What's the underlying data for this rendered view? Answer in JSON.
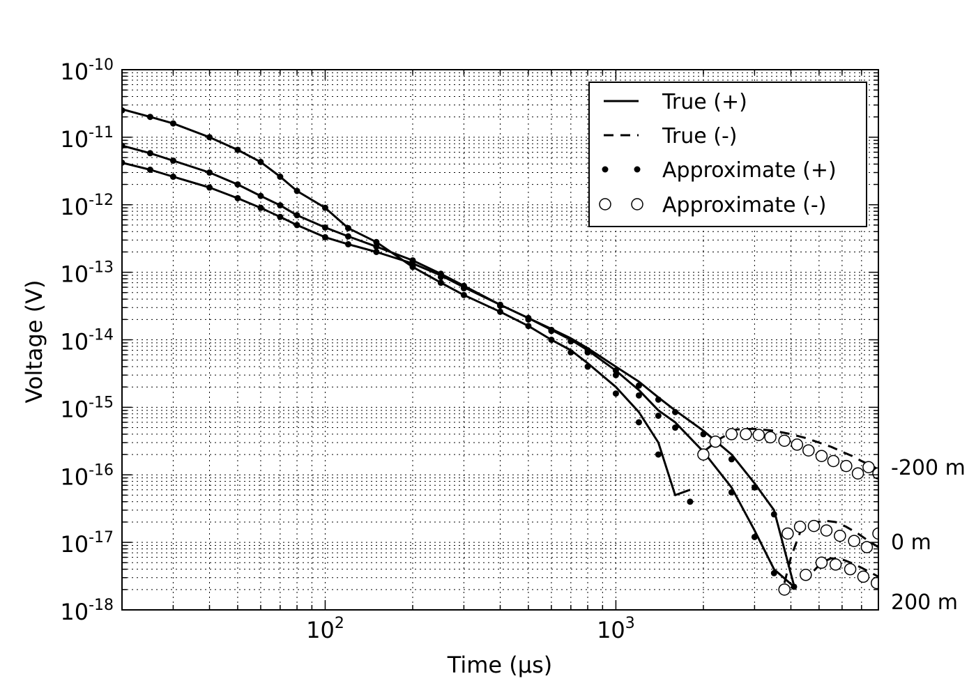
{
  "chart_data": {
    "type": "line",
    "xlabel": "Time (μs)",
    "ylabel": "Voltage (V)",
    "x_scale": "log",
    "y_scale": "log",
    "xlim": [
      20,
      8000
    ],
    "ylim": [
      1e-18,
      1e-10
    ],
    "grid": true,
    "legend_position": "top-right",
    "x_ticks": [
      {
        "value": 100,
        "base": "10",
        "exp": "2"
      },
      {
        "value": 1000,
        "base": "10",
        "exp": "3"
      }
    ],
    "y_ticks": [
      {
        "value": 1e-10,
        "base": "10",
        "exp": "-10"
      },
      {
        "value": 1e-11,
        "base": "10",
        "exp": "-11"
      },
      {
        "value": 1e-12,
        "base": "10",
        "exp": "-12"
      },
      {
        "value": 1e-13,
        "base": "10",
        "exp": "-13"
      },
      {
        "value": 1e-14,
        "base": "10",
        "exp": "-14"
      },
      {
        "value": 1e-15,
        "base": "10",
        "exp": "-15"
      },
      {
        "value": 1e-16,
        "base": "10",
        "exp": "-16"
      },
      {
        "value": 1e-17,
        "base": "10",
        "exp": "-17"
      },
      {
        "value": 1e-18,
        "base": "10",
        "exp": "-18"
      }
    ],
    "legend": [
      {
        "label": "True (+)",
        "style": "solid"
      },
      {
        "label": "True (-)",
        "style": "dashed"
      },
      {
        "label": "Approximate (+)",
        "style": "dots"
      },
      {
        "label": "Approximate (-)",
        "style": "circles"
      }
    ],
    "annotations": [
      {
        "text": "-200 m",
        "x": 8000,
        "y": 1e-16
      },
      {
        "text": "0 m",
        "x": 8000,
        "y": 1e-17
      },
      {
        "text": "200 m",
        "x": 8000,
        "y": 1.3e-18
      }
    ],
    "series": [
      {
        "kind": "true_pos",
        "x": [
          20,
          25,
          30,
          40,
          50,
          60,
          70,
          80,
          100,
          120,
          150,
          200,
          250,
          300,
          400,
          500,
          600,
          700,
          800,
          1000,
          1200,
          1400,
          1600,
          1800
        ],
        "y": [
          2.6e-11,
          2e-11,
          1.6e-11,
          1e-11,
          6.5e-12,
          4.3e-12,
          2.6e-12,
          1.6e-12,
          9e-13,
          4.5e-13,
          2.8e-13,
          1.2e-13,
          7e-14,
          4.6e-14,
          2.6e-14,
          1.6e-14,
          1e-14,
          7e-15,
          4.5e-15,
          2e-15,
          8.5e-16,
          3e-16,
          5e-17,
          6e-17
        ]
      },
      {
        "kind": "true_pos",
        "x": [
          20,
          25,
          30,
          40,
          50,
          60,
          70,
          80,
          100,
          120,
          150,
          200,
          250,
          300,
          400,
          500,
          600,
          700,
          800,
          1000,
          1200,
          1400,
          1600,
          2000,
          2500,
          3000,
          3500,
          4100
        ],
        "y": [
          7.5e-12,
          5.8e-12,
          4.5e-12,
          3e-12,
          2e-12,
          1.35e-12,
          9.8e-13,
          7e-13,
          4.6e-13,
          3.4e-13,
          2.4e-13,
          1.5e-13,
          9.5e-14,
          6.3e-14,
          3.3e-14,
          2.1e-14,
          1.4e-14,
          1e-14,
          7e-15,
          3.5e-15,
          1.8e-15,
          9e-16,
          6e-16,
          2.2e-16,
          6.5e-17,
          1.5e-17,
          4e-18,
          2.2e-18
        ]
      },
      {
        "kind": "true_pos",
        "x": [
          20,
          25,
          30,
          40,
          50,
          60,
          70,
          80,
          100,
          120,
          150,
          200,
          250,
          300,
          400,
          500,
          600,
          700,
          800,
          1000,
          1200,
          1400,
          1600,
          2000,
          2500,
          3000,
          3500,
          4100
        ],
        "y": [
          4.2e-12,
          3.3e-12,
          2.6e-12,
          1.8e-12,
          1.25e-12,
          9e-13,
          6.6e-13,
          5e-13,
          3.3e-13,
          2.6e-13,
          2e-13,
          1.35e-13,
          9e-14,
          6e-14,
          3.3e-14,
          2.1e-14,
          1.45e-14,
          1.05e-14,
          7.5e-15,
          4e-15,
          2.4e-15,
          1.4e-15,
          9e-16,
          4.5e-16,
          2e-16,
          7.5e-17,
          3e-17,
          2.3e-18
        ]
      },
      {
        "kind": "approx_pos",
        "x": [
          20,
          25,
          30,
          40,
          50,
          60,
          70,
          80,
          100,
          120,
          150,
          200,
          250,
          300,
          400,
          500,
          600,
          700,
          800,
          1000,
          1200,
          1400,
          1800
        ],
        "y": [
          2.5e-11,
          2e-11,
          1.6e-11,
          1e-11,
          6.5e-12,
          4.3e-12,
          2.6e-12,
          1.6e-12,
          9e-13,
          4.5e-13,
          2.8e-13,
          1.2e-13,
          7e-14,
          4.6e-14,
          2.6e-14,
          1.6e-14,
          1e-14,
          6.5e-15,
          4e-15,
          1.6e-15,
          6e-16,
          2e-16,
          4e-17
        ]
      },
      {
        "kind": "approx_pos",
        "x": [
          20,
          25,
          30,
          40,
          50,
          60,
          70,
          80,
          100,
          120,
          150,
          200,
          250,
          300,
          400,
          500,
          600,
          700,
          800,
          1000,
          1200,
          1400,
          1600,
          2000,
          2500,
          3000,
          3500,
          4100
        ],
        "y": [
          7.5e-12,
          5.8e-12,
          4.5e-12,
          3e-12,
          2e-12,
          1.35e-12,
          9.8e-13,
          7e-13,
          4.6e-13,
          3.4e-13,
          2.4e-13,
          1.5e-13,
          9.5e-14,
          6.3e-14,
          3.3e-14,
          2.1e-14,
          1.4e-14,
          9.5e-15,
          6.5e-15,
          3e-15,
          1.5e-15,
          7.5e-16,
          5e-16,
          2e-16,
          5.5e-17,
          1.2e-17,
          3.5e-18,
          2.2e-18
        ]
      },
      {
        "kind": "approx_pos",
        "x": [
          20,
          25,
          30,
          40,
          50,
          60,
          70,
          80,
          100,
          120,
          150,
          200,
          250,
          300,
          400,
          500,
          600,
          700,
          800,
          1000,
          1200,
          1400,
          1600,
          2000,
          2500,
          3000,
          3500
        ],
        "y": [
          4.2e-12,
          3.3e-12,
          2.6e-12,
          1.8e-12,
          1.25e-12,
          9e-13,
          6.6e-13,
          5e-13,
          3.3e-13,
          2.6e-13,
          2e-13,
          1.3e-13,
          8.5e-14,
          5.8e-14,
          3.2e-14,
          2e-14,
          1.35e-14,
          9.5e-15,
          7e-15,
          3.5e-15,
          2.1e-15,
          1.3e-15,
          8.5e-16,
          4e-16,
          1.7e-16,
          6.5e-17,
          2.6e-17
        ]
      },
      {
        "kind": "true_neg",
        "x": [
          2000,
          2300,
          2600,
          3000,
          3500,
          4000,
          4500,
          5000,
          5500,
          6000,
          6500,
          7000,
          7500,
          8000
        ],
        "y": [
          2.2e-16,
          3.5e-16,
          4.7e-16,
          4.8e-16,
          4.5e-16,
          4e-16,
          3.5e-16,
          3e-16,
          2.6e-16,
          2.2e-16,
          1.9e-16,
          1.6e-16,
          1.4e-16,
          1.2e-16
        ]
      },
      {
        "kind": "true_neg",
        "x": [
          3800,
          4000,
          4300,
          4700,
          5200,
          5700,
          6200,
          6800,
          7400,
          8000
        ],
        "y": [
          2.5e-18,
          6e-18,
          1.4e-17,
          1.9e-17,
          2.1e-17,
          2e-17,
          1.7e-17,
          1.35e-17,
          1.05e-17,
          8.5e-18
        ]
      },
      {
        "kind": "true_neg",
        "x": [
          4800,
          5100,
          5500,
          6000,
          6500,
          7000,
          7500,
          8000
        ],
        "y": [
          3.8e-18,
          5e-18,
          5.8e-18,
          5.6e-18,
          4.9e-18,
          4.2e-18,
          3.6e-18,
          3.1e-18
        ]
      },
      {
        "kind": "approx_neg",
        "x": [
          2000,
          2200,
          2500,
          2800,
          3100,
          3400,
          3800,
          4200,
          4600,
          5100,
          5600,
          6200,
          6800,
          7400,
          8000
        ],
        "y": [
          2e-16,
          3.1e-16,
          4e-16,
          4e-16,
          3.9e-16,
          3.6e-16,
          3.2e-16,
          2.8e-16,
          2.3e-16,
          1.9e-16,
          1.6e-16,
          1.35e-16,
          1.05e-16,
          1.3e-16,
          1.05e-16
        ]
      },
      {
        "kind": "approx_neg",
        "x": [
          3900,
          4300,
          4800,
          5300,
          5900,
          6600,
          7300,
          8000
        ],
        "y": [
          1.35e-17,
          1.7e-17,
          1.75e-17,
          1.5e-17,
          1.25e-17,
          1.05e-17,
          8.5e-18,
          1.35e-17
        ]
      },
      {
        "kind": "approx_neg",
        "x": [
          3800,
          4500,
          5100,
          5700,
          6400,
          7100,
          7900
        ],
        "y": [
          2e-18,
          3.3e-18,
          5e-18,
          4.7e-18,
          4e-18,
          3.1e-18,
          2.5e-18
        ]
      }
    ]
  }
}
